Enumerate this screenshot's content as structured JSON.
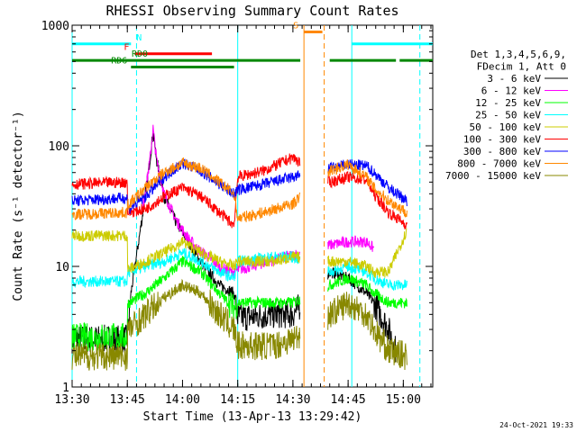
{
  "chart_data": {
    "type": "line",
    "title": "RHESSI Observing Summary Count Rates",
    "xlabel": "Start Time (13-Apr-13 13:29:42)",
    "ylabel": "Count Rate (s⁻¹ detector⁻¹)",
    "y_scale": "log",
    "ylim": [
      1,
      1000
    ],
    "xlim_minutes": [
      0,
      98
    ],
    "x_tick_labels": [
      "13:30",
      "13:45",
      "14:00",
      "14:15",
      "14:30",
      "14:45",
      "15:00"
    ],
    "x_tick_minutes": [
      0,
      15,
      30,
      45,
      60,
      75,
      90
    ],
    "y_tick_labels": [
      "1",
      "10",
      "100",
      "1000"
    ],
    "y_tick_values": [
      1,
      10,
      100,
      1000
    ],
    "legend_header": [
      "Det 1,3,4,5,6,9,",
      "FDecim 1, Att 0"
    ],
    "timestamp": "24-Oct-2021 19:33",
    "series": [
      {
        "name": "3 - 6 keV",
        "color": "#000000",
        "x": [
          0,
          15,
          16,
          19,
          21,
          22,
          23,
          25,
          28,
          31,
          34,
          37,
          40,
          44,
          45,
          48,
          55,
          60,
          70,
          75,
          80,
          82,
          86,
          88
        ],
        "y": [
          2.5,
          2.5,
          6,
          25,
          70,
          130,
          75,
          38,
          24,
          17,
          12,
          9,
          7,
          6,
          3.8,
          3.8,
          4,
          4,
          9,
          8,
          6,
          5,
          3,
          2
        ]
      },
      {
        "name": "6 - 12 keV",
        "color": "#ff00ff",
        "x": [
          19,
          21,
          22,
          23,
          25,
          28,
          31,
          34,
          37,
          40,
          43,
          70,
          75,
          80,
          82
        ],
        "y": [
          28,
          70,
          140,
          75,
          40,
          25,
          18,
          14,
          12,
          10,
          9,
          15,
          16,
          16,
          14
        ]
      },
      {
        "name": "12 - 25 keV",
        "color": "#00ff00",
        "x": [
          0,
          15,
          15.5,
          20,
          25,
          30,
          35,
          40,
          44,
          45,
          55,
          60,
          70,
          75,
          80,
          82,
          86,
          91
        ],
        "y": [
          2.6,
          2.6,
          5,
          6,
          8,
          11,
          9,
          6,
          4.5,
          5,
          5,
          5,
          7,
          8,
          7,
          6,
          5,
          5
        ]
      },
      {
        "name": "25 - 50 keV",
        "color": "#00ffff",
        "x": [
          0,
          15,
          15.5,
          20,
          25,
          30,
          35,
          40,
          44,
          45,
          55,
          60,
          70,
          75,
          80,
          82,
          86,
          91
        ],
        "y": [
          7.5,
          7.5,
          9,
          10,
          11,
          13,
          11,
          9,
          8,
          11,
          12,
          12,
          9,
          10,
          9,
          8,
          7,
          7
        ]
      },
      {
        "name": "50 - 100 keV",
        "color": "#cccc00",
        "x": [
          0,
          15,
          15.5,
          20,
          25,
          30,
          35,
          40,
          44,
          45,
          55,
          60,
          70,
          75,
          80,
          82,
          86,
          91
        ],
        "y": [
          18,
          18,
          9.5,
          11,
          13,
          16,
          13,
          11,
          10,
          11,
          11,
          12,
          11,
          11,
          10,
          9,
          9,
          20
        ]
      },
      {
        "name": "100 - 300 keV",
        "color": "#ff0000",
        "x": [
          0,
          15,
          15.5,
          20,
          25,
          30,
          35,
          40,
          44,
          45,
          52,
          60,
          70,
          75,
          80,
          82,
          86,
          91
        ],
        "y": [
          48,
          50,
          28,
          30,
          38,
          45,
          38,
          28,
          22,
          55,
          62,
          80,
          50,
          55,
          52,
          40,
          28,
          22
        ]
      },
      {
        "name": "300 - 800 keV",
        "color": "#0000ff",
        "x": [
          0,
          15,
          15.5,
          20,
          25,
          30,
          35,
          40,
          44,
          45,
          52,
          60,
          70,
          75,
          80,
          82,
          86,
          91
        ],
        "y": [
          35,
          37,
          30,
          38,
          55,
          72,
          62,
          48,
          40,
          43,
          48,
          55,
          65,
          70,
          68,
          60,
          45,
          35
        ]
      },
      {
        "name": "800 - 7000 keV",
        "color": "#ff8800",
        "x": [
          0,
          15,
          15.5,
          20,
          25,
          30,
          35,
          40,
          44,
          45,
          52,
          60,
          70,
          75,
          80,
          82,
          86,
          91
        ],
        "y": [
          27,
          28,
          33,
          45,
          60,
          72,
          65,
          50,
          40,
          25,
          28,
          33,
          62,
          70,
          55,
          45,
          35,
          28
        ]
      },
      {
        "name": "7000 - 15000 keV",
        "color": "#888800",
        "x": [
          0,
          15,
          15.5,
          20,
          25,
          30,
          35,
          40,
          44,
          45,
          55,
          60,
          70,
          75,
          80,
          82,
          86,
          91
        ],
        "y": [
          1.8,
          1.8,
          3,
          4,
          5.5,
          7,
          6,
          4,
          3,
          2.2,
          2.2,
          2.5,
          4,
          5,
          4,
          3,
          2,
          1.8
        ]
      }
    ],
    "flag_bars": [
      {
        "label": "N",
        "color": "#00ffff",
        "segments": [
          [
            0,
            16
          ],
          [
            76,
            98
          ]
        ],
        "value": 700
      },
      {
        "label": "F",
        "color": "#ff0000",
        "segments": [
          [
            17,
            38
          ]
        ],
        "value": 580
      },
      {
        "label": "RD0",
        "color": "#008800",
        "segments": [
          [
            0,
            62
          ],
          [
            70,
            88
          ],
          [
            89,
            98
          ]
        ],
        "value": 510
      },
      {
        "label": "RD6",
        "color": "#008800",
        "segments": [
          [
            16,
            44
          ]
        ],
        "value": 450
      },
      {
        "label": "S",
        "color": "#ff8800",
        "segments": [
          [
            63,
            68
          ]
        ],
        "value": 880
      }
    ],
    "markers": [
      {
        "color": "#00ffff",
        "style": "solid",
        "x": [
          0,
          45,
          76
        ]
      },
      {
        "color": "#00ffff",
        "style": "dashed",
        "x": [
          17.5,
          94.5
        ]
      },
      {
        "color": "#ff8800",
        "style": "solid",
        "x": [
          63
        ]
      },
      {
        "color": "#ff8800",
        "style": "dashed",
        "x": [
          68.5
        ]
      }
    ],
    "gaps": [
      [
        62,
        69.5
      ]
    ]
  }
}
